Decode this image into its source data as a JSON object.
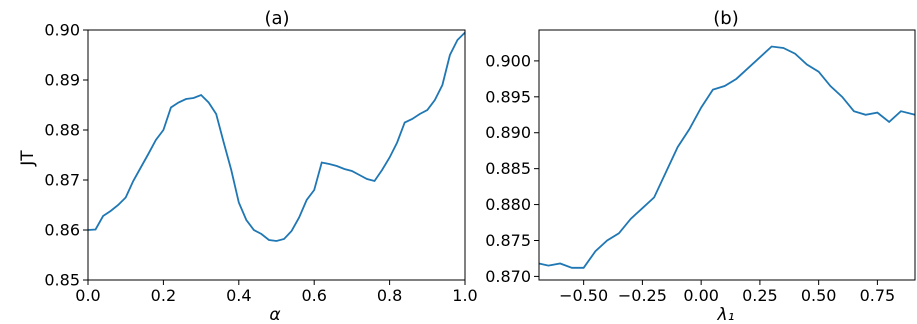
{
  "chart_data": [
    {
      "type": "line",
      "title": "(a)",
      "xlabel": "α",
      "ylabel": "JT",
      "xlim": [
        0.0,
        1.0
      ],
      "ylim": [
        0.85,
        0.9
      ],
      "xticks": [
        0.0,
        0.2,
        0.4,
        0.6,
        0.8,
        1.0
      ],
      "xtick_labels": [
        "0.0",
        "0.2",
        "0.4",
        "0.6",
        "0.8",
        "1.0"
      ],
      "yticks": [
        0.85,
        0.86,
        0.87,
        0.88,
        0.89,
        0.9
      ],
      "ytick_labels": [
        "0.85",
        "0.86",
        "0.87",
        "0.88",
        "0.89",
        "0.90"
      ],
      "grid": false,
      "color": "#1f77b4",
      "series": [
        {
          "x": [
            0.0,
            0.02,
            0.04,
            0.06,
            0.08,
            0.1,
            0.12,
            0.14,
            0.16,
            0.18,
            0.2,
            0.22,
            0.24,
            0.26,
            0.28,
            0.3,
            0.32,
            0.34,
            0.36,
            0.38,
            0.4,
            0.42,
            0.44,
            0.46,
            0.48,
            0.5,
            0.52,
            0.54,
            0.56,
            0.58,
            0.6,
            0.62,
            0.64,
            0.66,
            0.68,
            0.7,
            0.72,
            0.74,
            0.76,
            0.78,
            0.8,
            0.82,
            0.84,
            0.86,
            0.88,
            0.9,
            0.92,
            0.94,
            0.96,
            0.98,
            1.0
          ],
          "values": [
            0.86,
            0.8601,
            0.8628,
            0.8638,
            0.865,
            0.8665,
            0.8698,
            0.8725,
            0.8752,
            0.878,
            0.88,
            0.8845,
            0.8855,
            0.8862,
            0.8864,
            0.887,
            0.8855,
            0.8832,
            0.8775,
            0.872,
            0.8655,
            0.862,
            0.86,
            0.8592,
            0.858,
            0.8578,
            0.8582,
            0.8598,
            0.8625,
            0.866,
            0.868,
            0.8735,
            0.8732,
            0.8728,
            0.8722,
            0.8718,
            0.871,
            0.8702,
            0.8698,
            0.872,
            0.8745,
            0.8775,
            0.8815,
            0.8822,
            0.8832,
            0.884,
            0.886,
            0.889,
            0.895,
            0.898,
            0.8995
          ]
        }
      ]
    },
    {
      "type": "line",
      "title": "(b)",
      "xlabel": "λ₁",
      "ylabel": "",
      "xlim": [
        -0.69,
        0.91
      ],
      "ylim": [
        0.8695,
        0.9043
      ],
      "xticks": [
        -0.5,
        -0.25,
        0.0,
        0.25,
        0.5,
        0.75
      ],
      "xtick_labels": [
        "−0.50",
        "−0.25",
        "0.00",
        "0.25",
        "0.50",
        "0.75"
      ],
      "yticks": [
        0.87,
        0.875,
        0.88,
        0.885,
        0.89,
        0.895,
        0.9
      ],
      "ytick_labels": [
        "0.870",
        "0.875",
        "0.880",
        "0.885",
        "0.890",
        "0.895",
        "0.900"
      ],
      "grid": false,
      "color": "#1f77b4",
      "series": [
        {
          "x": [
            -0.69,
            -0.65,
            -0.6,
            -0.55,
            -0.5,
            -0.45,
            -0.4,
            -0.35,
            -0.3,
            -0.25,
            -0.2,
            -0.15,
            -0.1,
            -0.05,
            0.0,
            0.05,
            0.1,
            0.15,
            0.2,
            0.25,
            0.3,
            0.35,
            0.4,
            0.45,
            0.5,
            0.55,
            0.6,
            0.65,
            0.7,
            0.75,
            0.8,
            0.85,
            0.91
          ],
          "values": [
            0.8718,
            0.8715,
            0.8718,
            0.8712,
            0.8712,
            0.8735,
            0.875,
            0.876,
            0.878,
            0.8795,
            0.881,
            0.8845,
            0.888,
            0.8905,
            0.8935,
            0.896,
            0.8965,
            0.8975,
            0.899,
            0.9005,
            0.902,
            0.9018,
            0.901,
            0.8995,
            0.8985,
            0.8965,
            0.895,
            0.893,
            0.8925,
            0.8928,
            0.8915,
            0.893,
            0.8925
          ]
        }
      ]
    }
  ]
}
